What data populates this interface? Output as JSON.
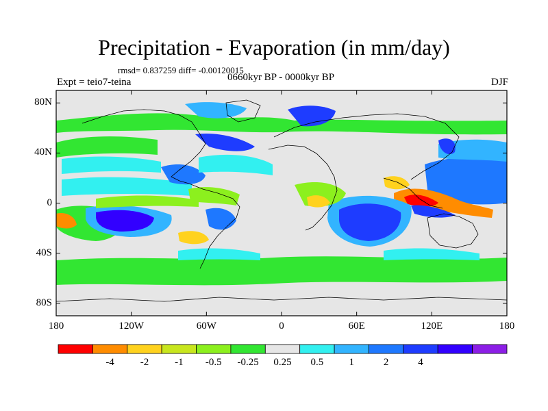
{
  "map": {
    "title": "Precipitation - Evaporation (in mm/day)",
    "stats": "rmsd= 0.837259 diff= -0.00120015",
    "period": "0660kyr BP - 0000kyr BP",
    "experiment": "Expt = teio7-teina",
    "season": "DJF",
    "projection": "equirectangular",
    "lon_range": [
      -180,
      180
    ],
    "lat_range": [
      -90,
      90
    ],
    "y_ticks": [
      {
        "label": "80N",
        "lat": 80
      },
      {
        "label": "40N",
        "lat": 40
      },
      {
        "label": "0",
        "lat": 0
      },
      {
        "label": "40S",
        "lat": -40
      },
      {
        "label": "80S",
        "lat": -80
      }
    ],
    "x_ticks": [
      {
        "label": "180",
        "lon": -180
      },
      {
        "label": "120W",
        "lon": -120
      },
      {
        "label": "60W",
        "lon": -60
      },
      {
        "label": "0",
        "lon": 0
      },
      {
        "label": "60E",
        "lon": 60
      },
      {
        "label": "120E",
        "lon": 120
      },
      {
        "label": "180",
        "lon": 180
      }
    ],
    "colorbar": {
      "colors": [
        "#ff0000",
        "#ff8c00",
        "#ffd21e",
        "#c8e61e",
        "#8cf01e",
        "#32e632",
        "#e6e6e6",
        "#32f0f0",
        "#32b4ff",
        "#1e78ff",
        "#1e3cff",
        "#3200ff",
        "#8c1ee6"
      ],
      "labels": [
        "-4",
        "-2",
        "-1",
        "-0.5",
        "-0.25",
        "0.25",
        "0.5",
        "1",
        "2",
        "4"
      ]
    },
    "background_color": "#e6e6e6"
  }
}
